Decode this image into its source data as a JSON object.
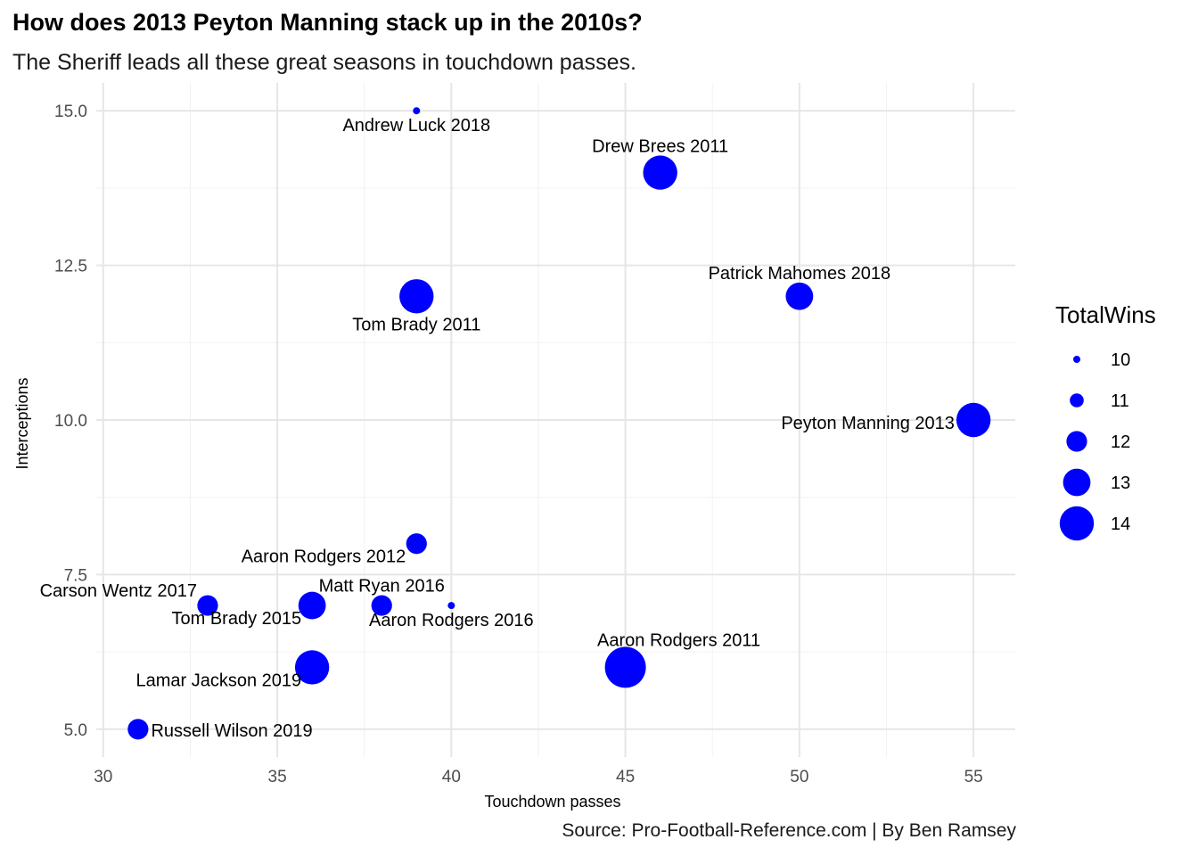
{
  "chart_data": {
    "type": "scatter",
    "title": "How does 2013 Peyton Manning stack up in the 2010s?",
    "subtitle": "The Sheriff leads all these great seasons in touchdown passes.",
    "caption": "Source: Pro-Football-Reference.com | By Ben Ramsey",
    "xlabel": "Touchdown passes",
    "ylabel": "Interceptions",
    "xlim": [
      29.8,
      56.2
    ],
    "ylim": [
      4.55,
      15.45
    ],
    "x_ticks": [
      30,
      35,
      40,
      45,
      50,
      55
    ],
    "x_tick_labels": [
      "30",
      "35",
      "40",
      "45",
      "50",
      "55"
    ],
    "y_ticks": [
      5.0,
      7.5,
      10.0,
      12.5,
      15.0
    ],
    "y_tick_labels": [
      "5.0",
      "7.5",
      "10.0",
      "12.5",
      "15.0"
    ],
    "grid": true,
    "point_color": "#0000ff",
    "size_variable": "TotalWins",
    "points": [
      {
        "label": "Andrew Luck 2018",
        "x": 39,
        "y": 15,
        "wins": 10,
        "label_pos": "below"
      },
      {
        "label": "Drew Brees 2011",
        "x": 46,
        "y": 14,
        "wins": 14,
        "label_pos": "above"
      },
      {
        "label": "Tom Brady 2011",
        "x": 39,
        "y": 12,
        "wins": 14,
        "label_pos": "below"
      },
      {
        "label": "Patrick Mahomes 2018",
        "x": 50,
        "y": 12,
        "wins": 13,
        "label_pos": "above"
      },
      {
        "label": "Peyton Manning 2013",
        "x": 55,
        "y": 10,
        "wins": 14,
        "label_pos": "left"
      },
      {
        "label": "Aaron Rodgers 2012",
        "x": 39,
        "y": 8,
        "wins": 12,
        "label_pos": "below-left"
      },
      {
        "label": "Carson Wentz 2017",
        "x": 33,
        "y": 7,
        "wins": 12,
        "label_pos": "above-left"
      },
      {
        "label": "Tom Brady 2015",
        "x": 36,
        "y": 7,
        "wins": 13,
        "label_pos": "below-left"
      },
      {
        "label": "Matt Ryan 2016",
        "x": 38,
        "y": 7,
        "wins": 12,
        "label_pos": "above"
      },
      {
        "label": "Aaron Rodgers 2016",
        "x": 40,
        "y": 7,
        "wins": 10,
        "label_pos": "below"
      },
      {
        "label": "Aaron Rodgers 2011",
        "x": 45,
        "y": 6,
        "wins": 15,
        "label_pos": "above-right"
      },
      {
        "label": "Lamar Jackson 2019",
        "x": 36,
        "y": 6,
        "wins": 14,
        "label_pos": "below-left"
      },
      {
        "label": "Russell Wilson 2019",
        "x": 31,
        "y": 5,
        "wins": 12,
        "label_pos": "right"
      }
    ],
    "legend": {
      "title": "TotalWins",
      "placement": "right",
      "entries": [
        {
          "label": "10",
          "wins": 10
        },
        {
          "label": "11",
          "wins": 11
        },
        {
          "label": "12",
          "wins": 12
        },
        {
          "label": "13",
          "wins": 13
        },
        {
          "label": "14",
          "wins": 14
        }
      ]
    }
  }
}
